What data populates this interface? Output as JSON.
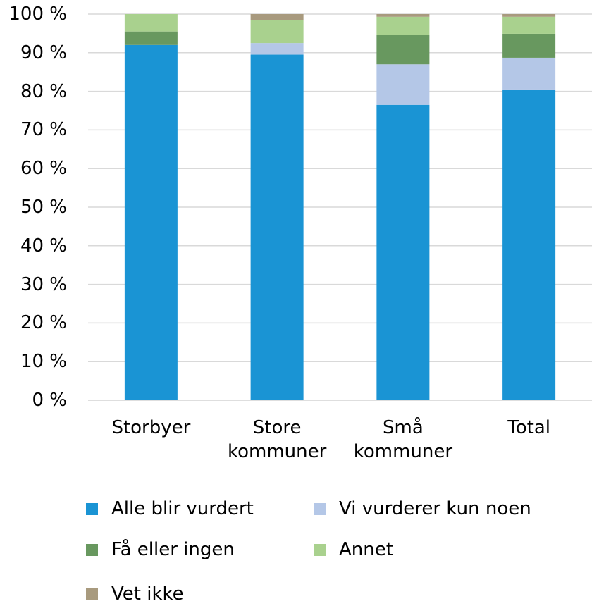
{
  "chart_data": {
    "type": "stacked_bar",
    "categories": [
      "Storbyer",
      "Store kommuner",
      "Små kommuner",
      "Total"
    ],
    "series": [
      {
        "name": "Alle blir vurdert",
        "color": "#1a94d4",
        "values": [
          92,
          89.5,
          76.5,
          80.3
        ]
      },
      {
        "name": "Vi vurderer kun noen",
        "color": "#b4c7e7",
        "values": [
          0,
          3,
          10.5,
          8.4
        ]
      },
      {
        "name": "Få eller ingen",
        "color": "#68985f",
        "values": [
          3.5,
          0,
          7.7,
          6.2
        ]
      },
      {
        "name": "Annet",
        "color": "#a9d18e",
        "values": [
          4.5,
          6,
          4.6,
          4.4
        ]
      },
      {
        "name": "Vet ikke",
        "color": "#a89a7e",
        "values": [
          0,
          1.5,
          0.7,
          0.7
        ]
      }
    ],
    "ylim": [
      0,
      100
    ],
    "yticks": [
      {
        "value": 0,
        "label": "0 %"
      },
      {
        "value": 10,
        "label": "10 %"
      },
      {
        "value": 20,
        "label": "20 %"
      },
      {
        "value": 30,
        "label": "30 %"
      },
      {
        "value": 40,
        "label": "40 %"
      },
      {
        "value": 50,
        "label": "50 %"
      },
      {
        "value": 60,
        "label": "60 %"
      },
      {
        "value": 70,
        "label": "70 %"
      },
      {
        "value": 80,
        "label": "80 %"
      },
      {
        "value": 90,
        "label": "90 %"
      },
      {
        "value": 100,
        "label": "100 %"
      }
    ],
    "grid": true
  }
}
